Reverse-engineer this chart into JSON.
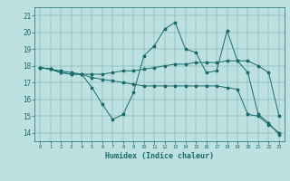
{
  "xlabel": "Humidex (Indice chaleur)",
  "background_color": "#bde0e0",
  "line_color": "#1a6b6b",
  "xlim": [
    -0.5,
    23.5
  ],
  "ylim": [
    13.5,
    21.5
  ],
  "yticks": [
    14,
    15,
    16,
    17,
    18,
    19,
    20,
    21
  ],
  "xticks": [
    0,
    1,
    2,
    3,
    4,
    5,
    6,
    7,
    8,
    9,
    10,
    11,
    12,
    13,
    14,
    15,
    16,
    17,
    18,
    19,
    20,
    21,
    22,
    23
  ],
  "lines": [
    {
      "x": [
        0,
        1,
        2,
        3,
        4,
        5,
        6,
        7,
        8,
        9,
        10,
        11,
        12,
        13,
        14,
        15,
        16,
        17,
        18,
        19,
        20,
        21,
        22,
        23
      ],
      "y": [
        17.9,
        17.8,
        17.6,
        17.5,
        17.5,
        16.7,
        15.7,
        14.8,
        15.1,
        16.4,
        18.6,
        19.2,
        20.2,
        20.6,
        19.0,
        18.8,
        17.6,
        17.7,
        20.1,
        18.3,
        17.6,
        15.1,
        14.6,
        13.9
      ]
    },
    {
      "x": [
        0,
        1,
        2,
        3,
        4,
        5,
        6,
        7,
        8,
        9,
        10,
        11,
        12,
        13,
        14,
        15,
        16,
        17,
        18,
        19,
        20,
        21,
        22,
        23
      ],
      "y": [
        17.9,
        17.8,
        17.6,
        17.5,
        17.5,
        17.5,
        17.5,
        17.6,
        17.7,
        17.7,
        17.8,
        17.9,
        18.0,
        18.1,
        18.1,
        18.2,
        18.2,
        18.2,
        18.3,
        18.3,
        18.3,
        18.0,
        17.6,
        15.0
      ]
    },
    {
      "x": [
        0,
        1,
        2,
        3,
        4,
        5,
        6,
        7,
        8,
        9,
        10,
        11,
        12,
        13,
        14,
        15,
        16,
        17,
        18,
        19,
        20,
        21,
        22,
        23
      ],
      "y": [
        17.9,
        17.8,
        17.7,
        17.6,
        17.5,
        17.3,
        17.2,
        17.1,
        17.0,
        16.9,
        16.8,
        16.8,
        16.8,
        16.8,
        16.8,
        16.8,
        16.8,
        16.8,
        16.7,
        16.6,
        15.1,
        15.0,
        14.5,
        14.0
      ]
    }
  ]
}
